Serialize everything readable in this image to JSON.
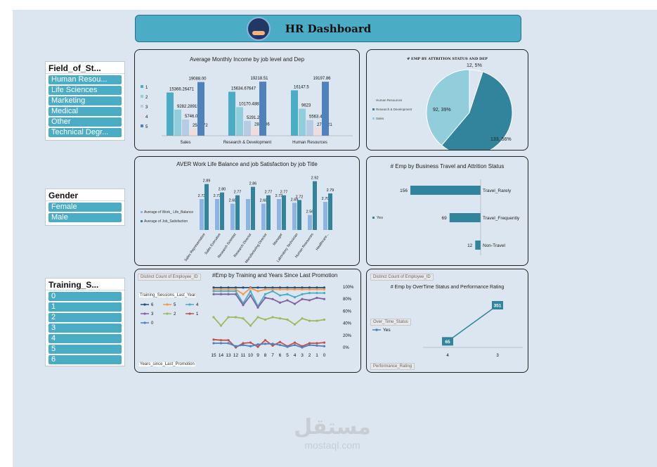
{
  "header": {
    "title": "HR Dashboard",
    "logo_icon": "people-in-hand-icon"
  },
  "slicers": {
    "field": {
      "title": "Field_of_St...",
      "items": [
        "Human Resou...",
        "Life Sciences",
        "Marketing",
        "Medical",
        "Other",
        "Technical Degr..."
      ]
    },
    "gender": {
      "title": "Gender",
      "items": [
        "Female",
        "Male"
      ]
    },
    "training": {
      "title": "Training_S...",
      "items": [
        "0",
        "1",
        "2",
        "3",
        "4",
        "5",
        "6"
      ]
    }
  },
  "income_chart": {
    "title": "Average Monthly Income by job level and Dep",
    "legend": [
      "1",
      "2",
      "3",
      "4",
      "5"
    ],
    "colors": [
      "#4bacc6",
      "#92cddc",
      "#b7cce4",
      "#f2dcdb",
      "#4f81bd"
    ],
    "chart_data": {
      "type": "bar",
      "categories": [
        "Sales",
        "Research & Development",
        "Human Resources"
      ],
      "groups": [
        {
          "values": [
            15366.26471,
            9282.289157,
            5746.05,
            2506.72,
            19088.0
          ],
          "labels": [
            "15366.26471",
            "9282.289157",
            "5746.05",
            "2506.72",
            "19088.00"
          ]
        },
        {
          "values": [
            15634.67647,
            10170.48837,
            5291.24,
            2840.06,
            19218.51
          ],
          "labels": [
            "15634.67647",
            "10170.48837",
            "5291.24",
            "2840.06",
            "19218.51"
          ]
        },
        {
          "values": [
            16147.5,
            9623,
            5563.46,
            2733.21,
            19197.86
          ],
          "labels": [
            "16147.5",
            "9623",
            "5563.46",
            "2733.21",
            "19197.86"
          ]
        }
      ]
    }
  },
  "attrition_chart": {
    "title": "# EMP BY ATTRITION STATUS AND DEP",
    "legend": [
      "Human Resources",
      "Research & Development",
      "Sales"
    ],
    "chart_data": {
      "type": "pie",
      "slices": [
        {
          "name": "Human Resources",
          "value": 12,
          "label": "12, 5%",
          "color": "#dbe5f1"
        },
        {
          "name": "Research & Development",
          "value": 133,
          "label": "133, 56%",
          "color": "#31849b"
        },
        {
          "name": "Sales",
          "value": 92,
          "label": "92, 39%",
          "color": "#92cddc"
        }
      ]
    }
  },
  "wlb_chart": {
    "title": "AVER Work Life Balance and job Satisfaction by job Title",
    "legend": [
      "Average of Work_ Life_Balance",
      "Average of Job_Satisfaction"
    ],
    "colors": [
      "#8db3e2",
      "#31849b"
    ],
    "chart_data": {
      "type": "bar",
      "categories": [
        "Sales Representative",
        "Sales Executive",
        "Research Scientist",
        "Research Director",
        "Manufacturing Director",
        "Manager",
        "Laboratory Technician",
        "Human Resources",
        "Healthcare..."
      ],
      "series": [
        {
          "name": "Average of Work_ Life_Balance",
          "values": [
            2.73,
            2.73,
            2.68,
            2.73,
            2.68,
            2.73,
            2.69,
            2.56,
            2.7
          ],
          "labels": [
            "2.73",
            "2.73",
            "2.68",
            "",
            "2.68",
            "2.73",
            "2.69",
            "2.56",
            "2.70"
          ]
        },
        {
          "name": "Average of Job_Satisfaction",
          "values": [
            2.89,
            2.8,
            2.77,
            2.86,
            2.77,
            2.77,
            2.72,
            2.92,
            2.79
          ],
          "labels": [
            "2.89",
            "2.80",
            "2.77",
            "2.86",
            "2.77",
            "2.77",
            "2.72",
            "2.92",
            "2.79"
          ]
        }
      ]
    }
  },
  "travel_chart": {
    "title": "# Emp by Business Travel and Attrition Status",
    "legend": [
      "Yes"
    ],
    "chart_data": {
      "type": "bar",
      "categories": [
        "Travel_Rarely",
        "Travel_Frequently",
        "Non-Travel"
      ],
      "values": [
        156,
        69,
        12
      ]
    }
  },
  "training_chart": {
    "title": "#Emp by Training and Years Since Last Promotion",
    "field_top": "Distinct Count of Employee_ID",
    "legend_title": "Training_Sessions_Last_Year",
    "field_bottom": "Years_since_Last_Promotion",
    "legend": [
      "6",
      "5",
      "4",
      "3",
      "2",
      "1",
      "0"
    ],
    "colors": [
      "#1f4e79",
      "#f79646",
      "#4bacc6",
      "#8064a2",
      "#9bbb59",
      "#c0504d",
      "#4f81bd"
    ],
    "chart_data": {
      "type": "line",
      "x": [
        "15",
        "14",
        "13",
        "12",
        "11",
        "10",
        "9",
        "8",
        "7",
        "6",
        "5",
        "4",
        "3",
        "2",
        "1",
        "0"
      ],
      "yticks": [
        "0%",
        "20%",
        "40%",
        "60%",
        "80%",
        "100%"
      ],
      "series": [
        {
          "name": "6",
          "values": [
            99,
            99,
            99,
            99,
            99,
            99,
            99,
            99,
            99,
            99,
            99,
            99,
            99,
            99,
            99,
            99
          ]
        },
        {
          "name": "5",
          "values": [
            96,
            96,
            96,
            96,
            88,
            98,
            93,
            96,
            96,
            96,
            96,
            96,
            96,
            96,
            96,
            96
          ]
        },
        {
          "name": "4",
          "values": [
            93,
            93,
            93,
            93,
            73,
            93,
            68,
            88,
            93,
            86,
            88,
            83,
            88,
            90,
            90,
            90
          ]
        },
        {
          "name": "3",
          "values": [
            88,
            88,
            88,
            88,
            70,
            86,
            66,
            82,
            80,
            74,
            78,
            72,
            80,
            78,
            82,
            80
          ]
        },
        {
          "name": "2",
          "values": [
            50,
            36,
            50,
            50,
            48,
            36,
            50,
            46,
            50,
            48,
            46,
            38,
            48,
            44,
            44,
            46
          ]
        },
        {
          "name": "1",
          "values": [
            13,
            12,
            12,
            0,
            7,
            8,
            1,
            12,
            3,
            9,
            2,
            8,
            2,
            7,
            7,
            8
          ]
        },
        {
          "name": "0",
          "values": [
            7,
            7,
            7,
            2,
            4,
            2,
            5,
            6,
            6,
            4,
            1,
            4,
            0,
            4,
            3,
            2
          ]
        }
      ]
    }
  },
  "overtime_chart": {
    "title": "# Emp by OverTime Status and Performance Rating",
    "field_top": "Distinct Count of Employee_ID",
    "legend_title": "Over_Time_Status",
    "legend": [
      "Yes"
    ],
    "field_bottom": "Performance_Rating",
    "chart_data": {
      "type": "line",
      "x": [
        "4",
        "3"
      ],
      "values": [
        65,
        351
      ],
      "labels": [
        "65",
        "351"
      ]
    }
  },
  "watermark": {
    "arabic": "مستقل",
    "latin": "mostaql.com"
  }
}
